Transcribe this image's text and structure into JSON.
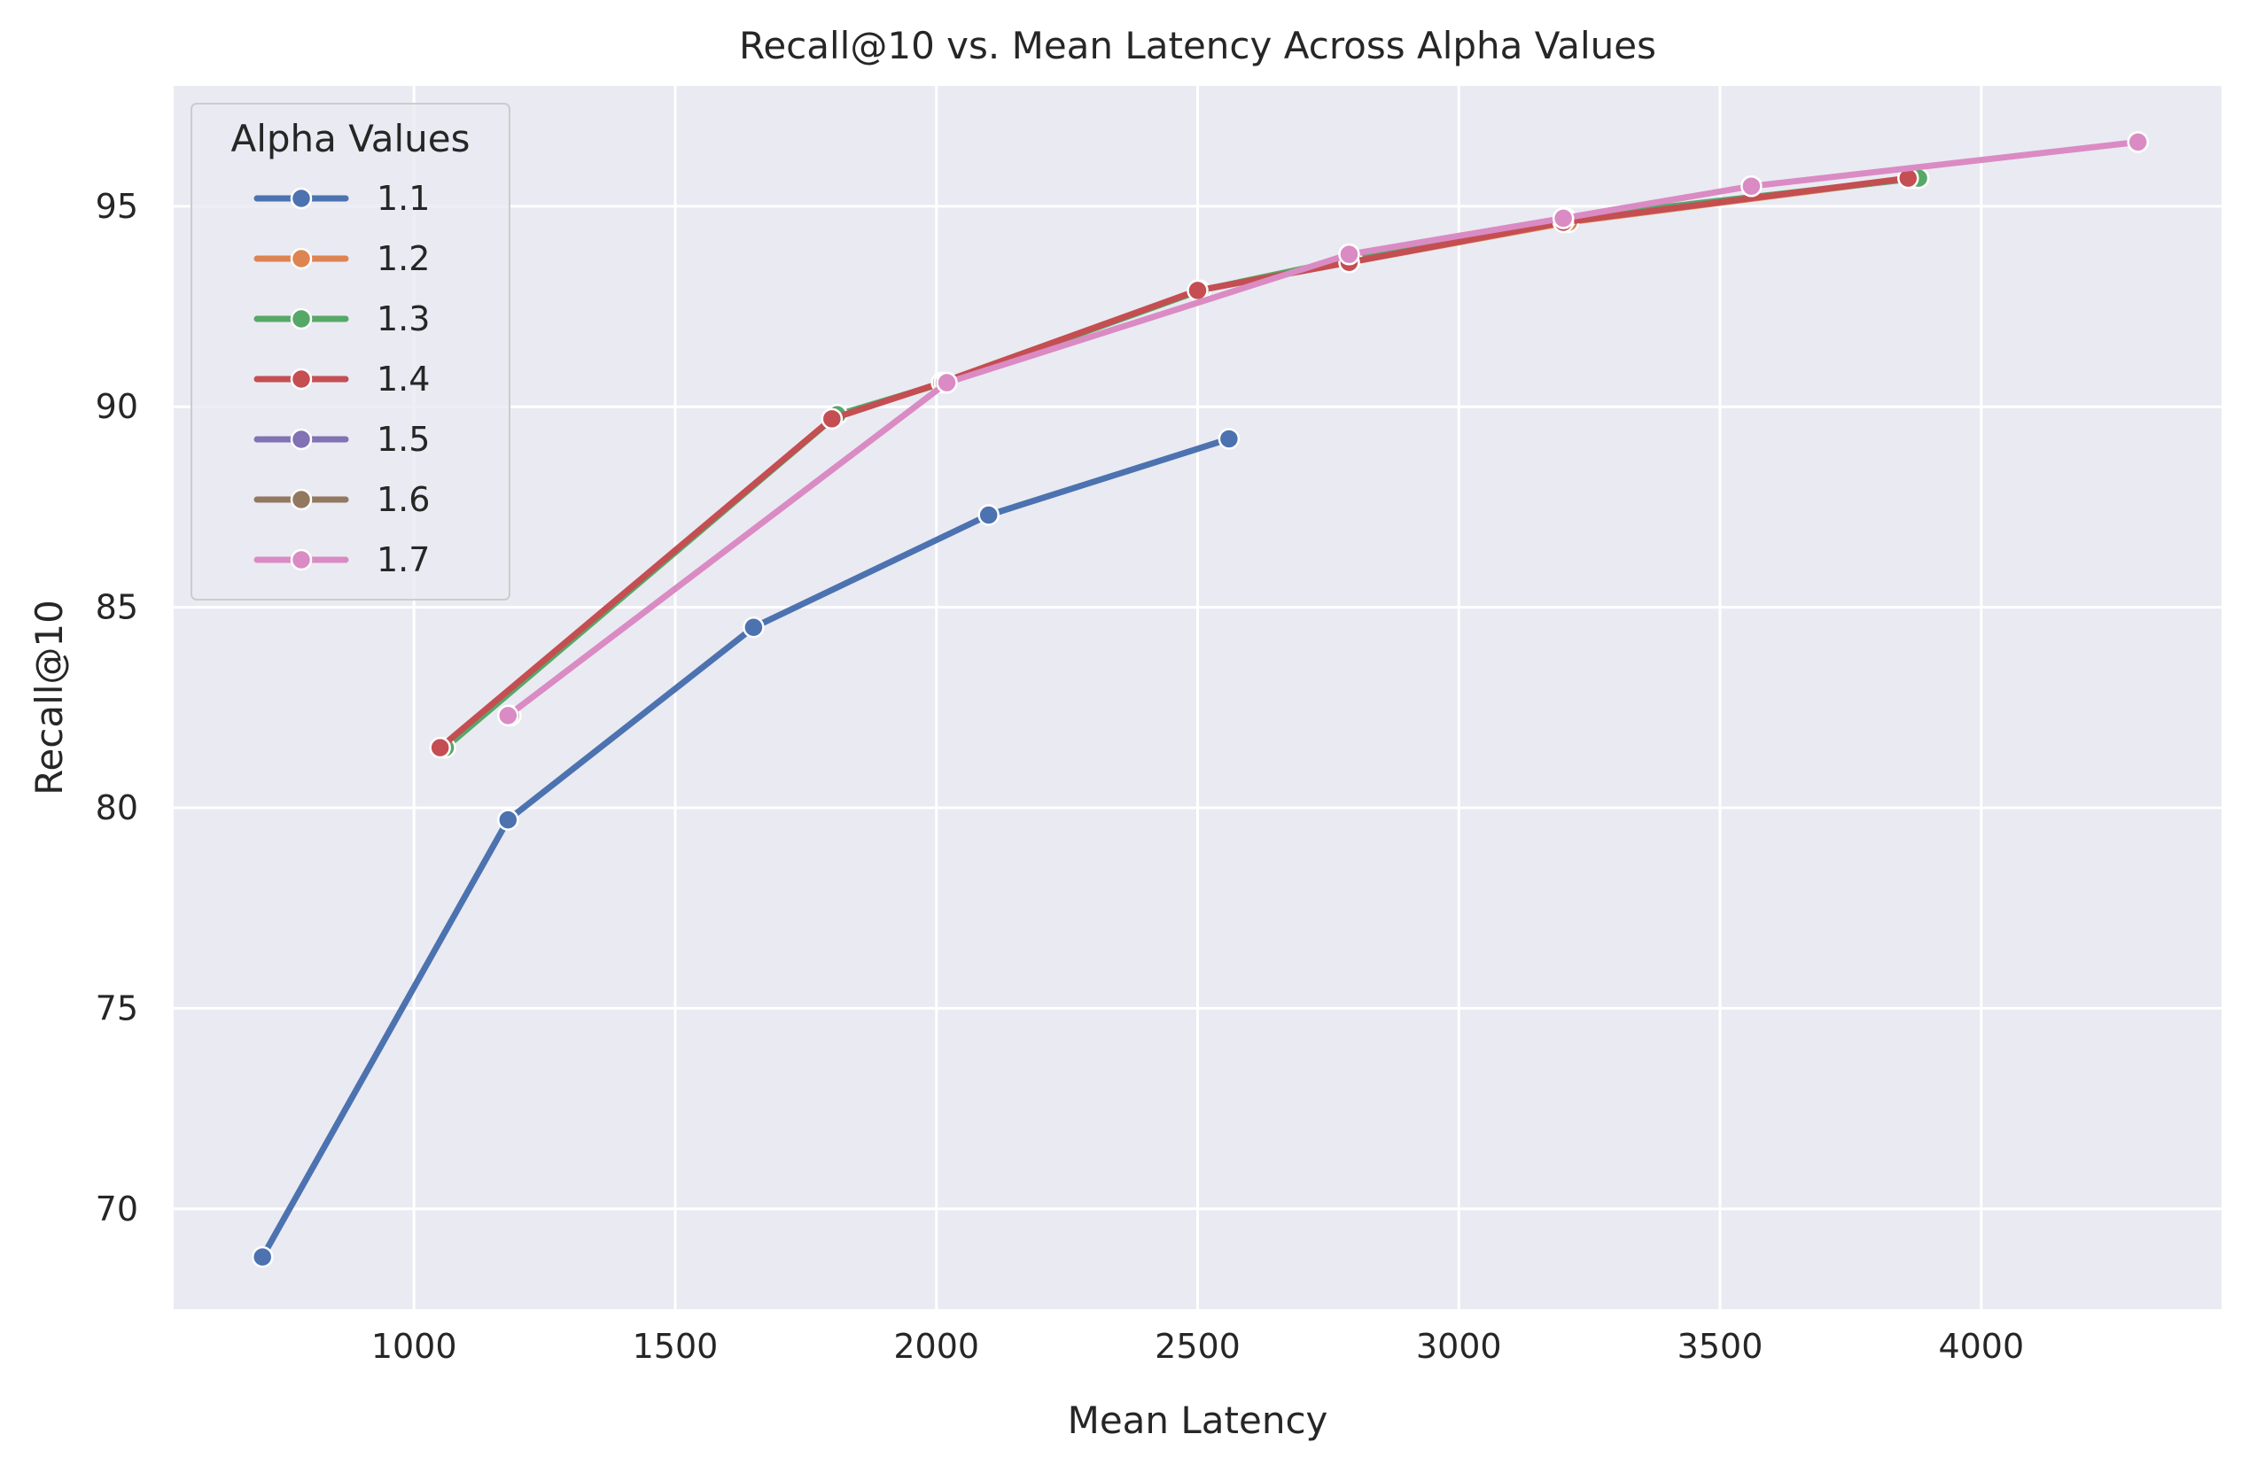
{
  "chart_data": {
    "type": "line",
    "title": "Recall@10 vs. Mean Latency Across Alpha Values",
    "xlabel": "Mean Latency",
    "ylabel": "Recall@10",
    "xlim": [
      540,
      4460
    ],
    "ylim": [
      67.5,
      98
    ],
    "xticks": [
      1000,
      1500,
      2000,
      2500,
      3000,
      3500,
      4000
    ],
    "yticks": [
      70,
      75,
      80,
      85,
      90,
      95
    ],
    "grid": true,
    "legend": {
      "title": "Alpha Values",
      "position": "top-left"
    },
    "series": [
      {
        "name": "1.1",
        "color": "#4c72b0",
        "points": [
          [
            710,
            68.8
          ],
          [
            1180,
            79.7
          ],
          [
            1650,
            84.5
          ],
          [
            2100,
            87.3
          ],
          [
            2560,
            89.2
          ]
        ]
      },
      {
        "name": "1.2",
        "color": "#dd8452",
        "points": [
          [
            1055,
            81.5
          ],
          [
            1800,
            89.7
          ],
          [
            2010,
            90.6
          ],
          [
            2500,
            92.9
          ],
          [
            2790,
            93.6
          ],
          [
            3210,
            94.6
          ],
          [
            3870,
            95.7
          ]
        ]
      },
      {
        "name": "1.3",
        "color": "#55a868",
        "points": [
          [
            1060,
            81.5
          ],
          [
            1810,
            89.8
          ],
          [
            2015,
            90.6
          ],
          [
            2505,
            92.9
          ],
          [
            2795,
            93.7
          ],
          [
            3205,
            94.7
          ],
          [
            3880,
            95.7
          ]
        ]
      },
      {
        "name": "1.4",
        "color": "#c44e52",
        "points": [
          [
            1050,
            81.5
          ],
          [
            1800,
            89.7
          ],
          [
            2010,
            90.6
          ],
          [
            2500,
            92.9
          ],
          [
            2790,
            93.6
          ],
          [
            3200,
            94.6
          ],
          [
            3860,
            95.7
          ]
        ]
      },
      {
        "name": "1.5",
        "color": "#8172b3",
        "points": [
          [
            1185,
            82.3
          ],
          [
            2020,
            90.6
          ],
          [
            2790,
            93.8
          ],
          [
            3200,
            94.7
          ],
          [
            3560,
            95.5
          ],
          [
            4300,
            96.6
          ]
        ]
      },
      {
        "name": "1.6",
        "color": "#937860",
        "points": [
          [
            1185,
            82.3
          ],
          [
            2015,
            90.6
          ],
          [
            2790,
            93.8
          ],
          [
            3200,
            94.7
          ],
          [
            3560,
            95.5
          ],
          [
            4300,
            96.6
          ]
        ]
      },
      {
        "name": "1.7",
        "color": "#da8bc3",
        "points": [
          [
            1180,
            82.3
          ],
          [
            2020,
            90.6
          ],
          [
            2790,
            93.8
          ],
          [
            3200,
            94.7
          ],
          [
            3560,
            95.5
          ],
          [
            4300,
            96.6
          ]
        ]
      }
    ]
  }
}
